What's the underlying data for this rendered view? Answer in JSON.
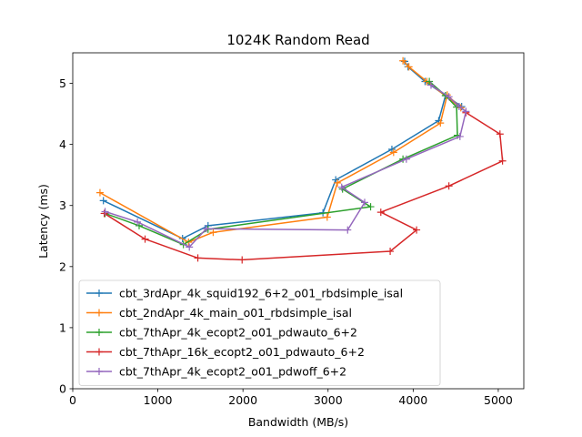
{
  "chart_data": {
    "type": "line",
    "title": "1024K  Random Read",
    "xlabel": "Bandwidth (MB/s)",
    "ylabel": "Latency (ms)",
    "xlim": [
      0,
      5300
    ],
    "ylim": [
      0,
      5.5
    ],
    "xticks": [
      0,
      1000,
      2000,
      3000,
      4000,
      5000
    ],
    "yticks": [
      0,
      1,
      2,
      3,
      4,
      5
    ],
    "grid": false,
    "legend_position": "lower-left",
    "marker": "+",
    "series": [
      {
        "name": "cbt_3rdApr_4k_squid192_6+2_o01_rbdsimple_isal",
        "color": "#1f77b4",
        "x": [
          360,
          1290,
          1590,
          2940,
          3090,
          3750,
          4300,
          4380,
          4570,
          4140,
          3940,
          3900
        ],
        "y": [
          3.08,
          2.46,
          2.67,
          2.88,
          3.42,
          3.92,
          4.39,
          4.8,
          4.62,
          5.03,
          5.27,
          5.36
        ]
      },
      {
        "name": "cbt_2ndApr_4k_main_o01_rbdsimple_isal",
        "color": "#ff7f0e",
        "x": [
          320,
          1360,
          1650,
          2990,
          3110,
          3770,
          4320,
          4400,
          4560,
          4160,
          3950,
          3880
        ],
        "y": [
          3.21,
          2.4,
          2.56,
          2.81,
          3.37,
          3.87,
          4.35,
          4.81,
          4.6,
          5.03,
          5.27,
          5.37
        ]
      },
      {
        "name": "cbt_7thApr_4k_ecopt2_o01_pdwauto_6+2",
        "color": "#2ca02c",
        "x": [
          380,
          780,
          1300,
          1590,
          3500,
          3170,
          3880,
          4520,
          4510,
          4380,
          4190
        ],
        "y": [
          2.87,
          2.67,
          2.36,
          2.61,
          2.98,
          3.27,
          3.76,
          4.15,
          4.61,
          4.8,
          5.03
        ]
      },
      {
        "name": "cbt_7thApr_16k_ecopt2_o01_pdwauto_6+2",
        "color": "#d62728",
        "x": [
          370,
          850,
          1470,
          1990,
          3730,
          4040,
          3620,
          4420,
          5050,
          5020,
          4620
        ],
        "y": [
          2.87,
          2.45,
          2.14,
          2.11,
          2.25,
          2.6,
          2.89,
          3.32,
          3.73,
          4.17,
          4.52
        ]
      },
      {
        "name": "cbt_7thApr_4k_ecopt2_o01_pdwoff_6+2",
        "color": "#9467bd",
        "x": [
          380,
          760,
          1370,
          1570,
          3230,
          3430,
          3160,
          3920,
          4550,
          4620,
          4540,
          4420,
          4210
        ],
        "y": [
          2.9,
          2.73,
          2.32,
          2.62,
          2.6,
          3.05,
          3.3,
          3.76,
          4.13,
          4.54,
          4.62,
          4.78,
          4.97
        ]
      }
    ]
  }
}
